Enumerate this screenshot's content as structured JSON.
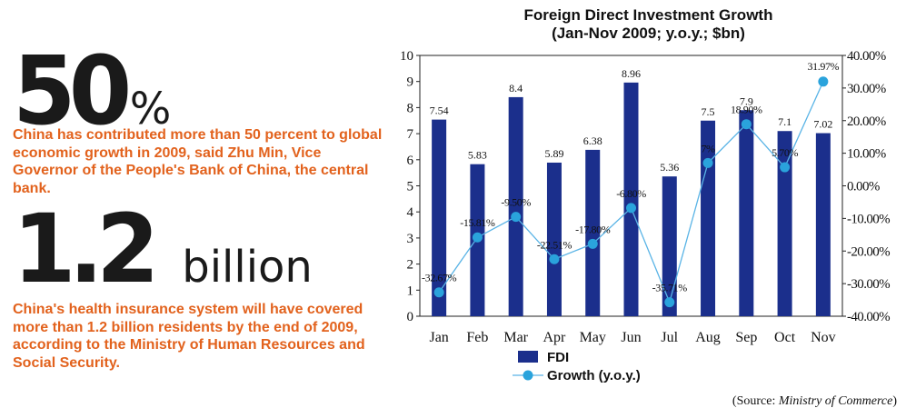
{
  "left": {
    "stat1": {
      "number": "50",
      "unit": "%",
      "text": "China has contributed more than 50 percent to global economic growth in 2009, said Zhu Min, Vice Governor of the People's Bank of China, the central bank."
    },
    "stat2": {
      "number": "1.2",
      "unit": "billion",
      "text": "China's health insurance system will have covered more than 1.2 billion residents by the end of 2009, according to the Ministry of Human Resources and Social Security."
    }
  },
  "colors": {
    "bar": "#1b2f8c",
    "line": "#5ab4e6",
    "marker": "#2aa3dc",
    "accent_text": "#e2621d"
  },
  "chart_data": {
    "type": "bar",
    "title": "Foreign Direct Investment Growth",
    "subtitle": "(Jan-Nov 2009; y.o.y.; $bn)",
    "categories": [
      "Jan",
      "Feb",
      "Mar",
      "Apr",
      "May",
      "Jun",
      "Jul",
      "Aug",
      "Sep",
      "Oct",
      "Nov"
    ],
    "series": [
      {
        "name": "FDI",
        "kind": "bar",
        "axis": "left",
        "values": [
          7.54,
          5.83,
          8.4,
          5.89,
          6.38,
          8.96,
          5.36,
          7.5,
          7.9,
          7.1,
          7.02
        ],
        "labels": [
          "7.54",
          "5.83",
          "8.4",
          "5.89",
          "6.38",
          "8.96",
          "5.36",
          "7.5",
          "7.9",
          "7.1",
          "7.02"
        ]
      },
      {
        "name": "Growth (y.o.y.)",
        "kind": "line",
        "axis": "right",
        "values": [
          -32.67,
          -15.81,
          -9.5,
          -22.51,
          -17.8,
          -6.8,
          -35.71,
          7,
          18.9,
          5.7,
          31.97
        ],
        "labels": [
          "-32.67%",
          "-15.81%",
          "-9.50%",
          "-22.51%",
          "-17.80%",
          "-6.80%",
          "-35.71%",
          "7%",
          "18.90%",
          "5.70%",
          "31.97%"
        ]
      }
    ],
    "y_left": {
      "min": 0,
      "max": 10,
      "ticks": [
        "0",
        "1",
        "2",
        "3",
        "4",
        "5",
        "6",
        "7",
        "8",
        "9",
        "10"
      ]
    },
    "y_right": {
      "min": -40,
      "max": 40,
      "ticks": [
        "-40.00%",
        "-30.00%",
        "-20.00%",
        "-10.00%",
        "0.00%",
        "10.00%",
        "20.00%",
        "30.00%",
        "40.00%"
      ]
    },
    "legend_position": "bottom",
    "grid": false
  },
  "source": {
    "prefix": "(Source: ",
    "name": "Ministry of Commerce",
    "suffix": ")"
  }
}
